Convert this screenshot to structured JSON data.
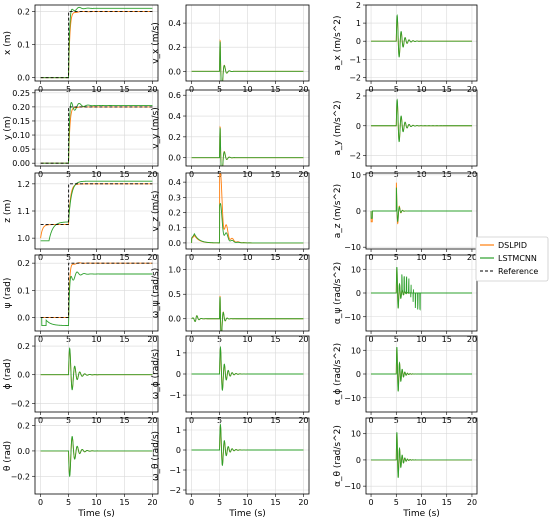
{
  "colors": {
    "dslpid": "#ff7f0e",
    "lstmcnn": "#2ca02c",
    "reference": "#000000",
    "grid": "#d9d9d9"
  },
  "legend": {
    "placement": "right-center",
    "entries": [
      {
        "label": "DSLPID",
        "color": "#ff7f0e",
        "style": "solid"
      },
      {
        "label": "LSTMCNN",
        "color": "#2ca02c",
        "style": "solid"
      },
      {
        "label": "Reference",
        "color": "#000000",
        "style": "dashed"
      }
    ]
  },
  "chart_data": [
    {
      "type": "line",
      "ylabel": "x (m)",
      "xlabel": "",
      "xlim": [
        -1,
        21
      ],
      "ylim": [
        -0.01,
        0.22
      ],
      "xticks": [
        "0",
        "5",
        "10",
        "15",
        "20"
      ],
      "yticks": [
        0.0,
        0.1,
        0.2
      ],
      "ytick_labels": [
        "0.0",
        "0.1",
        "0.2"
      ],
      "shape": "step",
      "p": {
        "a": 0,
        "b": 0.2,
        "ts": 5,
        "ovD": 0.01,
        "ovL": 0.02,
        "ssL": 0.21
      },
      "grid": true
    },
    {
      "type": "line",
      "ylabel": "v_x (m/s)",
      "xlabel": "",
      "xlim": [
        -1,
        21
      ],
      "ylim": [
        -0.08,
        0.55
      ],
      "xticks": [
        "0",
        "5",
        "10",
        "15",
        "20"
      ],
      "yticks": [
        0.0,
        0.2,
        0.4
      ],
      "ytick_labels": [
        "0.0",
        "0.2",
        "0.4"
      ],
      "shape": "pulse",
      "p": {
        "amp": 0.52,
        "neg": 0.05,
        "tau": 0.6,
        "w": 7
      },
      "grid": true
    },
    {
      "type": "line",
      "ylabel": "a_x (m/s^2)",
      "xlabel": "",
      "xlim": [
        -1,
        21
      ],
      "ylim": [
        -2.2,
        2.0
      ],
      "xticks": [
        "0",
        "5",
        "10",
        "15",
        "20"
      ],
      "yticks": [
        -2,
        -1,
        0,
        1,
        2
      ],
      "ytick_labels": [
        "−2",
        "−1",
        "0",
        "1",
        "2"
      ],
      "shape": "osc",
      "p": {
        "amp": 1.8,
        "tau": 0.8,
        "w": 8
      },
      "grid": true
    },
    {
      "type": "line",
      "ylabel": "y (m)",
      "xlabel": "",
      "xlim": [
        -1,
        21
      ],
      "ylim": [
        -0.01,
        0.26
      ],
      "xticks": [
        "0",
        "5",
        "10",
        "15",
        "20"
      ],
      "yticks": [
        0.0,
        0.05,
        0.1,
        0.15,
        0.2,
        0.25
      ],
      "ytick_labels": [
        "0.00",
        "0.05",
        "0.10",
        "0.15",
        "0.20",
        "0.25"
      ],
      "shape": "step",
      "p": {
        "a": 0,
        "b": 0.2,
        "ts": 5,
        "ovD": 0.01,
        "ovL": 0.05,
        "ssL": 0.205
      },
      "grid": true
    },
    {
      "type": "line",
      "ylabel": "v_y (m/s)",
      "xlabel": "",
      "xlim": [
        -1,
        21
      ],
      "ylim": [
        -0.08,
        0.65
      ],
      "xticks": [
        "0",
        "5",
        "10",
        "15",
        "20"
      ],
      "yticks": [
        0.0,
        0.2,
        0.4,
        0.6
      ],
      "ytick_labels": [
        "0.0",
        "0.2",
        "0.4",
        "0.6"
      ],
      "shape": "pulse",
      "p": {
        "amp": 0.6,
        "neg": 0.05,
        "tau": 0.6,
        "w": 7
      },
      "grid": true
    },
    {
      "type": "line",
      "ylabel": "a_y (m/s^2)",
      "xlabel": "",
      "xlim": [
        -1,
        21
      ],
      "ylim": [
        -2.7,
        2.4
      ],
      "xticks": [
        "0",
        "5",
        "10",
        "15",
        "20"
      ],
      "yticks": [
        -2,
        0,
        2
      ],
      "ytick_labels": [
        "−2",
        "0",
        "2"
      ],
      "shape": "osc",
      "p": {
        "amp": 2.2,
        "tau": 0.8,
        "w": 8
      },
      "grid": true
    },
    {
      "type": "line",
      "ylabel": "z (m)",
      "xlabel": "",
      "xlim": [
        -1,
        21
      ],
      "ylim": [
        0.96,
        1.24
      ],
      "xticks": [
        "0",
        "5",
        "10",
        "15",
        "20"
      ],
      "yticks": [
        1.0,
        1.1,
        1.2
      ],
      "ytick_labels": [
        "1.0",
        "1.1",
        "1.2"
      ],
      "shape": "zstep",
      "p": {},
      "grid": true
    },
    {
      "type": "line",
      "ylabel": "v_z (m/s)",
      "xlabel": "",
      "xlim": [
        -1,
        21
      ],
      "ylim": [
        -0.04,
        0.46
      ],
      "xticks": [
        "0",
        "5",
        "10",
        "15",
        "20"
      ],
      "yticks": [
        0.0,
        0.1,
        0.2,
        0.3,
        0.4
      ],
      "ytick_labels": [
        "0.0",
        "0.1",
        "0.2",
        "0.3",
        "0.4"
      ],
      "shape": "vz",
      "p": {},
      "grid": true
    },
    {
      "type": "line",
      "ylabel": "a_z (m/s^2)",
      "xlabel": "",
      "xlim": [
        -1,
        21
      ],
      "ylim": [
        -10.5,
        10.5
      ],
      "xticks": [
        "0",
        "5",
        "10",
        "15",
        "20"
      ],
      "yticks": [
        -10,
        0,
        10
      ],
      "ytick_labels": [
        "−10",
        "0",
        "10"
      ],
      "shape": "az",
      "p": {},
      "grid": true
    },
    {
      "type": "line",
      "ylabel": "ψ (rad)",
      "xlabel": "",
      "xlim": [
        -1,
        21
      ],
      "ylim": [
        -0.05,
        0.23
      ],
      "xticks": [
        "0",
        "5",
        "10",
        "15",
        "20"
      ],
      "yticks": [
        0.0,
        0.1,
        0.2
      ],
      "ytick_labels": [
        "0.0",
        "0.1",
        "0.2"
      ],
      "shape": "psi",
      "p": {},
      "grid": true
    },
    {
      "type": "line",
      "ylabel": "ω_ψ (rad/s)",
      "xlabel": "",
      "xlim": [
        -1,
        21
      ],
      "ylim": [
        -0.25,
        1.3
      ],
      "xticks": [
        "0",
        "5",
        "10",
        "15",
        "20"
      ],
      "yticks": [
        0.0,
        0.5,
        1.0
      ],
      "ytick_labels": [
        "0.0",
        "0.5",
        "1.0"
      ],
      "shape": "pulse",
      "p": {
        "amp": 1.2,
        "neg": 0.2,
        "tau": 0.5,
        "w": 9,
        "early": 0.1
      },
      "grid": true
    },
    {
      "type": "line",
      "ylabel": "α_ψ (rad/s^2)",
      "xlabel": "",
      "xlim": [
        -1,
        21
      ],
      "ylim": [
        -16,
        16
      ],
      "xticks": [
        "0",
        "5",
        "10",
        "15",
        "20"
      ],
      "yticks": [
        -10,
        0,
        10
      ],
      "ytick_labels": [
        "−10",
        "0",
        "10"
      ],
      "shape": "osc",
      "p": {
        "amp": 14,
        "tau": 0.5,
        "w": 12,
        "spikes": true
      },
      "grid": true
    },
    {
      "type": "line",
      "ylabel": "ϕ (rad)",
      "xlabel": "",
      "xlim": [
        -1,
        21
      ],
      "ylim": [
        -0.26,
        0.27
      ],
      "xticks": [
        "0",
        "5",
        "10",
        "15",
        "20"
      ],
      "yticks": [
        -0.2,
        0.0,
        0.2
      ],
      "ytick_labels": [
        "−0.2",
        "0.0",
        "0.2"
      ],
      "shape": "osc",
      "p": {
        "amp": 0.24,
        "tau": 0.8,
        "w": 7
      },
      "grid": true
    },
    {
      "type": "line",
      "ylabel": "ω_ϕ (rad/s)",
      "xlabel": "",
      "xlim": [
        -1,
        21
      ],
      "ylim": [
        -1.8,
        1.8
      ],
      "xticks": [
        "0",
        "5",
        "10",
        "15",
        "20"
      ],
      "yticks": [
        -1,
        0,
        1
      ],
      "ytick_labels": [
        "−1",
        "0",
        "1"
      ],
      "shape": "osc",
      "p": {
        "amp": 1.6,
        "tau": 0.7,
        "w": 9
      },
      "grid": true
    },
    {
      "type": "line",
      "ylabel": "α_ϕ (rad/s^2)",
      "xlabel": "",
      "xlim": [
        -1,
        21
      ],
      "ylim": [
        -16,
        16
      ],
      "xticks": [
        "0",
        "5",
        "10",
        "15",
        "20"
      ],
      "yticks": [
        -10,
        0,
        10
      ],
      "ytick_labels": [
        "−10",
        "0",
        "10"
      ],
      "shape": "osc",
      "p": {
        "amp": 14,
        "tau": 0.6,
        "w": 12
      },
      "grid": true
    },
    {
      "type": "line",
      "ylabel": "θ (rad)",
      "xlabel": "Time (s)",
      "xlim": [
        -1,
        21
      ],
      "ylim": [
        -0.34,
        0.26
      ],
      "xticks": [
        "0",
        "5",
        "10",
        "15",
        "20"
      ],
      "yticks": [
        -0.2,
        0.0,
        0.2
      ],
      "ytick_labels": [
        "−0.2",
        "0.0",
        "0.2"
      ],
      "shape": "osc",
      "p": {
        "amp": 0.26,
        "tau": 0.8,
        "w": 7,
        "neg": true
      },
      "grid": true
    },
    {
      "type": "line",
      "ylabel": "ω_θ (rad/s)",
      "xlabel": "Time (s)",
      "xlim": [
        -1,
        21
      ],
      "ylim": [
        -2.2,
        1.6
      ],
      "xticks": [
        "0",
        "5",
        "10",
        "15",
        "20"
      ],
      "yticks": [
        -2,
        -1,
        0,
        1
      ],
      "ytick_labels": [
        "−2",
        "−1",
        "0",
        "1"
      ],
      "shape": "osc",
      "p": {
        "amp": 1.6,
        "tau": 0.7,
        "w": 9
      },
      "grid": true
    },
    {
      "type": "line",
      "ylabel": "α_θ (rad/s^2)",
      "xlabel": "Time (s)",
      "xlim": [
        -1,
        21
      ],
      "ylim": [
        -13,
        16
      ],
      "xticks": [
        "0",
        "5",
        "10",
        "15",
        "20"
      ],
      "yticks": [
        -10,
        0,
        10
      ],
      "ytick_labels": [
        "−10",
        "0",
        "10"
      ],
      "shape": "osc",
      "p": {
        "amp": 13,
        "tau": 0.6,
        "w": 12
      },
      "grid": true
    }
  ]
}
